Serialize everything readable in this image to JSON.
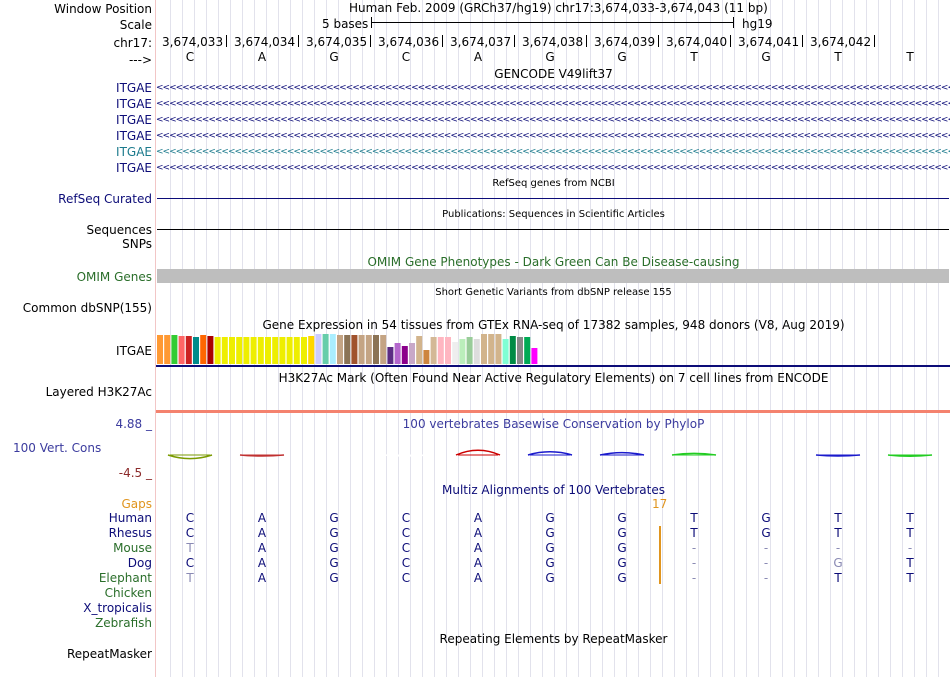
{
  "ruler": {
    "window_position_label": "Window Position",
    "scale_label": "Scale",
    "chr_label": "chr17:",
    "strand_label": "--->",
    "assembly_title": "Human Feb. 2009 (GRCh37/hg19)   chr17:3,674,033-3,674,043 (11 bp)",
    "scale_text": "5 bases",
    "assembly_tag": "hg19",
    "positions": [
      "3,674,033",
      "3,674,034",
      "3,674,035",
      "3,674,036",
      "3,674,037",
      "3,674,038",
      "3,674,039",
      "3,674,040",
      "3,674,041",
      "3,674,042"
    ],
    "bases": [
      "C",
      "A",
      "G",
      "C",
      "A",
      "G",
      "G",
      "T",
      "G",
      "T",
      "T"
    ]
  },
  "gencode": {
    "title": "GENCODE V49lift37",
    "transcripts": [
      {
        "label": "ITGAE",
        "color": "#0c0c78"
      },
      {
        "label": "ITGAE",
        "color": "#0c0c78"
      },
      {
        "label": "ITGAE",
        "color": "#0c0c78"
      },
      {
        "label": "ITGAE",
        "color": "#0c0c78"
      },
      {
        "label": "ITGAE",
        "color": "#1b7a8c"
      },
      {
        "label": "ITGAE",
        "color": "#0c0c78"
      }
    ]
  },
  "refseq": {
    "title": "RefSeq genes from NCBI",
    "label": "RefSeq Curated"
  },
  "publications": {
    "title": "Publications: Sequences in Scientific Articles",
    "label1": "Sequences",
    "label2": "SNPs"
  },
  "omim": {
    "title": "OMIM Gene Phenotypes - Dark Green Can Be Disease-causing",
    "label": "OMIM Genes"
  },
  "dbsnp": {
    "title": "Short Genetic Variants from dbSNP release 155",
    "label": "Common dbSNP(155)"
  },
  "gtex": {
    "title": "Gene Expression in 54 tissues from GTEx RNA-seq of 17382 samples, 948 donors (V8, Aug 2019)",
    "label": "ITGAE",
    "bars": [
      {
        "c": "#ff9933",
        "v": 0.97
      },
      {
        "c": "#ff9933",
        "v": 0.97
      },
      {
        "c": "#33cc33",
        "v": 0.95
      },
      {
        "c": "#ff6666",
        "v": 0.93
      },
      {
        "c": "#cc2222",
        "v": 0.93
      },
      {
        "c": "#008b8b",
        "v": 0.9
      },
      {
        "c": "#ff6600",
        "v": 0.95
      },
      {
        "c": "#aa0000",
        "v": 0.93
      },
      {
        "c": "#eeee00",
        "v": 0.9
      },
      {
        "c": "#eeee00",
        "v": 0.9
      },
      {
        "c": "#eeee00",
        "v": 0.9
      },
      {
        "c": "#eeee00",
        "v": 0.9
      },
      {
        "c": "#eeee00",
        "v": 0.9
      },
      {
        "c": "#eeee00",
        "v": 0.9
      },
      {
        "c": "#eeee00",
        "v": 0.9
      },
      {
        "c": "#eeee00",
        "v": 0.9
      },
      {
        "c": "#eeee00",
        "v": 0.9
      },
      {
        "c": "#eeee00",
        "v": 0.9
      },
      {
        "c": "#eeee00",
        "v": 0.9
      },
      {
        "c": "#eeee00",
        "v": 0.9
      },
      {
        "c": "#eeee00",
        "v": 0.9
      },
      {
        "c": "#ffd700",
        "v": 0.93
      },
      {
        "c": "#ccccff",
        "v": 1.0
      },
      {
        "c": "#66cdaa",
        "v": 1.0
      },
      {
        "c": "#aaeeff",
        "v": 1.0
      },
      {
        "c": "#c4a484",
        "v": 0.97
      },
      {
        "c": "#8b7355",
        "v": 0.97
      },
      {
        "c": "#a0522d",
        "v": 0.97
      },
      {
        "c": "#c4a484",
        "v": 0.97
      },
      {
        "c": "#c4a484",
        "v": 0.97
      },
      {
        "c": "#8b7355",
        "v": 0.97
      },
      {
        "c": "#c4a484",
        "v": 0.97
      },
      {
        "c": "#5b2c83",
        "v": 0.57
      },
      {
        "c": "#b366cc",
        "v": 0.7
      },
      {
        "c": "#8b008b",
        "v": 0.6
      },
      {
        "c": "#c8a8c8",
        "v": 0.7
      },
      {
        "c": "#d2b48c",
        "v": 0.93
      },
      {
        "c": "#cd853f",
        "v": 0.47
      },
      {
        "c": "#d4b896",
        "v": 0.9
      },
      {
        "c": "#ffb6c1",
        "v": 0.9
      },
      {
        "c": "#ffb6c1",
        "v": 0.9
      },
      {
        "c": "#eeeeee",
        "v": 0.73
      },
      {
        "c": "#bbeebb",
        "v": 0.83
      },
      {
        "c": "#99cc99",
        "v": 0.9
      },
      {
        "c": "#dddddd",
        "v": 0.83
      },
      {
        "c": "#d2b48c",
        "v": 1.0
      },
      {
        "c": "#d2b48c",
        "v": 1.0
      },
      {
        "c": "#d2b48c",
        "v": 1.0
      },
      {
        "c": "#7fffd4",
        "v": 0.83
      },
      {
        "c": "#008b45",
        "v": 0.93
      },
      {
        "c": "#888888",
        "v": 0.9
      },
      {
        "c": "#00aa55",
        "v": 0.9
      },
      {
        "c": "#ff00ff",
        "v": 0.53
      }
    ]
  },
  "h3k27ac": {
    "title": "H3K27Ac Mark (Often Found Near Active Regulatory Elements) on 7 cell lines from ENCODE",
    "label": "Layered H3K27Ac"
  },
  "phylop": {
    "title": "100 vertebrates Basewise Conservation by PhyloP",
    "label": "100 Vert. Cons",
    "ymax": "4.88 _",
    "ymin": "-4.5 _",
    "scores": [
      -0.9,
      -0.1,
      0,
      -0.1,
      1.2,
      0.8,
      0.6,
      0.4,
      0,
      -0.2,
      -0.3
    ],
    "colors": [
      "#7a9a00",
      "#c03030",
      "#ffffff",
      "#ffffff",
      "#cc0000",
      "#1a1acc",
      "#1a1acc",
      "#22cc22",
      "#ffffff",
      "#1a1acc",
      "#22cc22"
    ]
  },
  "multiz": {
    "title": "Multiz Alignments of 100 Vertebrates",
    "gaps_label": "Gaps",
    "insertion_count": "17",
    "species": [
      {
        "name": "Human",
        "color": "#0c0c78",
        "bases": [
          "C",
          "A",
          "G",
          "C",
          "A",
          "G",
          "G",
          "T",
          "G",
          "T",
          "T"
        ]
      },
      {
        "name": "Rhesus",
        "color": "#0c0c78",
        "bases": [
          "C",
          "A",
          "G",
          "C",
          "A",
          "G",
          "G",
          "T",
          "G",
          "T",
          "T"
        ]
      },
      {
        "name": "Mouse",
        "color": "#2a6e2a",
        "bases": [
          "T",
          "A",
          "G",
          "C",
          "A",
          "G",
          "G",
          "-",
          "-",
          "-",
          "-"
        ]
      },
      {
        "name": "Dog",
        "color": "#0c0c78",
        "bases": [
          "C",
          "A",
          "G",
          "C",
          "A",
          "G",
          "G",
          "-",
          "-",
          "G",
          "T"
        ]
      },
      {
        "name": "Elephant",
        "color": "#2a6e2a",
        "bases": [
          "T",
          "A",
          "G",
          "C",
          "A",
          "G",
          "G",
          "-",
          "-",
          "T",
          "T"
        ]
      },
      {
        "name": "Chicken",
        "color": "#2a6e2a",
        "bases": []
      },
      {
        "name": "X_tropicalis",
        "color": "#0c0c78",
        "bases": []
      },
      {
        "name": "Zebrafish",
        "color": "#2a6e2a",
        "bases": []
      }
    ]
  },
  "repeatmasker": {
    "title": "Repeating Elements by RepeatMasker",
    "label": "RepeatMasker"
  }
}
